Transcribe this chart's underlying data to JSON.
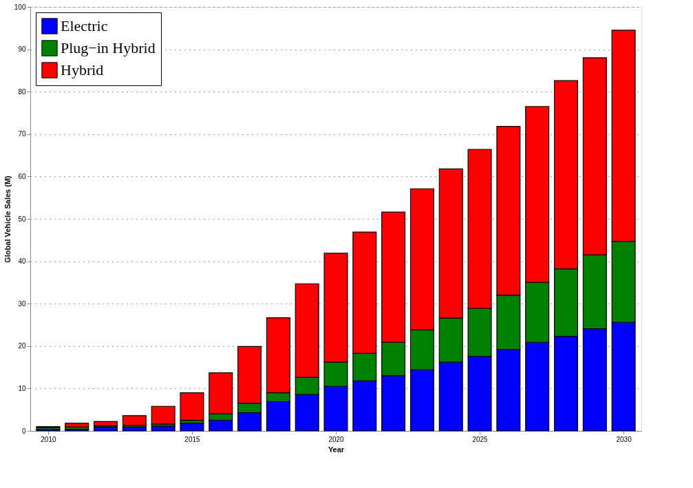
{
  "chart_data": {
    "type": "bar",
    "stacked": true,
    "xlabel": "Year",
    "ylabel": "Global Vehicle Sales (M)",
    "x": [
      2010,
      2011,
      2012,
      2013,
      2014,
      2015,
      2016,
      2017,
      2018,
      2019,
      2020,
      2021,
      2022,
      2023,
      2024,
      2025,
      2026,
      2027,
      2028,
      2029,
      2030
    ],
    "series": [
      {
        "name": "Electric",
        "color": "#0000ff",
        "values": [
          0.3,
          0.4,
          0.9,
          0.9,
          1.1,
          1.8,
          2.5,
          4.3,
          6.9,
          8.6,
          10.5,
          11.8,
          13.0,
          14.4,
          16.2,
          17.6,
          19.2,
          20.9,
          22.3,
          24.1,
          25.6
        ]
      },
      {
        "name": "Plug−in Hybrid",
        "color": "#008000",
        "values": [
          0.5,
          0.5,
          0.3,
          0.4,
          0.5,
          0.7,
          1.5,
          2.2,
          2.1,
          4.0,
          5.7,
          6.5,
          7.9,
          9.4,
          10.4,
          11.3,
          12.8,
          14.1,
          15.9,
          17.4,
          19.1
        ]
      },
      {
        "name": "Hybrid",
        "color": "#ff0000",
        "values": [
          0.2,
          0.9,
          1.0,
          2.3,
          4.2,
          6.5,
          9.7,
          13.4,
          17.7,
          22.1,
          25.7,
          28.6,
          30.7,
          33.3,
          35.2,
          37.5,
          39.8,
          41.5,
          44.4,
          46.5,
          49.8
        ]
      }
    ],
    "xlim": [
      2009.5,
      2030.5
    ],
    "xticks": [
      2010,
      2015,
      2020,
      2025,
      2030
    ],
    "ylim": [
      0,
      100
    ],
    "yticks": [
      0,
      10,
      20,
      30,
      40,
      50,
      60,
      70,
      80,
      90,
      100
    ],
    "grid": "y",
    "legend": "top left"
  }
}
